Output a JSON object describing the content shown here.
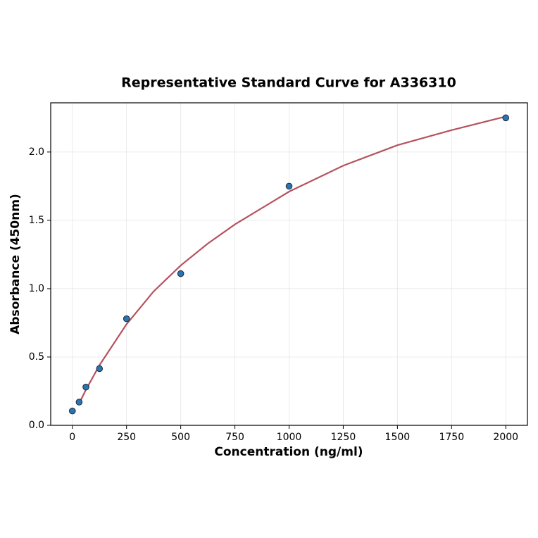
{
  "chart_data": {
    "type": "scatter",
    "title": "Representative Standard Curve for A336310",
    "x_label": "Concentration (ng/ml)",
    "y_label": "Absorbance (450nm)",
    "series": [
      {
        "type": "line",
        "color": "#b5525f",
        "x": [
          31.25,
          62.5,
          125,
          250,
          375,
          500,
          625,
          750,
          1000,
          1250,
          1500,
          1750,
          2000
        ],
        "values": [
          0.16,
          0.26,
          0.44,
          0.74,
          0.98,
          1.17,
          1.33,
          1.47,
          1.71,
          1.9,
          2.05,
          2.16,
          2.26
        ]
      },
      {
        "type": "scatter",
        "color": "#2b74b0",
        "x": [
          0,
          31.25,
          62.5,
          125,
          250,
          500,
          1000,
          2000
        ],
        "values": [
          0.105,
          0.17,
          0.28,
          0.415,
          0.78,
          1.11,
          1.75,
          2.25
        ]
      }
    ],
    "xlim": [
      -100,
      2100
    ],
    "ylim": [
      0,
      2.36
    ],
    "xticks": [
      0,
      250,
      500,
      750,
      1000,
      1250,
      1500,
      1750,
      2000
    ],
    "yticks": [
      {
        "value": 0,
        "label": "0.0"
      },
      0.5,
      {
        "value": 1,
        "label": "1.0"
      },
      1.5,
      {
        "value": 2,
        "label": "2.0"
      }
    ],
    "grid": true
  }
}
